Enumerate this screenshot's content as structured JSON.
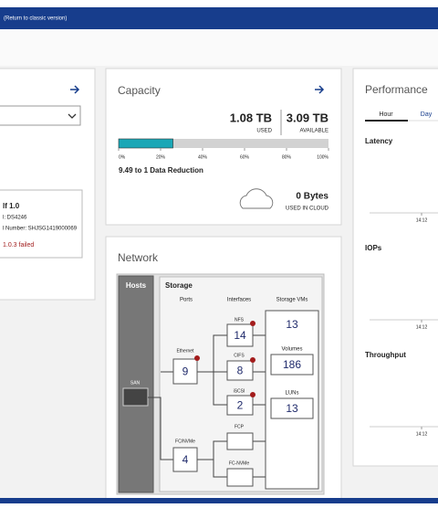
{
  "top_bar": {
    "link": "(Return to classic version)"
  },
  "left_panel": {
    "info": [
      "lf 1.0",
      "l: DS4246",
      "l Number: SHJSG1419000069"
    ],
    "error": "1.0.3 failed"
  },
  "capacity": {
    "title": "Capacity",
    "used": {
      "value": 1.08,
      "label": "1.08 TB"
    },
    "used_caption": "USED",
    "available": {
      "value": 3.09,
      "label": "3.09 TB"
    },
    "available_caption": "AVAILABLE",
    "bar_ticks": [
      {
        "value": 0,
        "label": "0%"
      },
      {
        "value": 20,
        "label": "20%"
      },
      {
        "value": 40,
        "label": "40%"
      },
      {
        "value": 60,
        "label": "60%"
      },
      {
        "value": 80,
        "label": "80%"
      },
      {
        "value": 100,
        "label": "100%"
      }
    ],
    "reduction": "9.49 to 1 Data Reduction",
    "cloud": "0 Bytes",
    "cloud_caption": "USED IN CLOUD"
  },
  "performance": {
    "title": "Performance",
    "tabs": [
      "Hour",
      "Day"
    ],
    "charts": [
      {
        "label": "Latency",
        "tick": "14:12"
      },
      {
        "label": "IOPs",
        "tick": "14:12"
      },
      {
        "label": "Throughput",
        "tick": "14:12"
      }
    ]
  },
  "network": {
    "title": "Network",
    "hosts": "Hosts",
    "san": "SAN",
    "storage": "Storage",
    "headers": [
      "Ports",
      "Interfaces",
      "Storage VMs"
    ],
    "ports": [
      {
        "label": "Ethernet",
        "value": 9
      },
      {
        "label": "FC/NVMe",
        "value": 4
      }
    ],
    "interfaces": [
      {
        "label": "NFS",
        "value": 14
      },
      {
        "label": "CIFS",
        "value": 8
      },
      {
        "label": "iSCSI",
        "value": 2
      },
      {
        "label": "FCP",
        "value": null
      },
      {
        "label": "FC-NVMe",
        "value": null
      }
    ],
    "storage_vms": 13,
    "volumes_label": "Volumes",
    "volumes": 186,
    "luns_label": "LUNs",
    "luns": 13
  }
}
